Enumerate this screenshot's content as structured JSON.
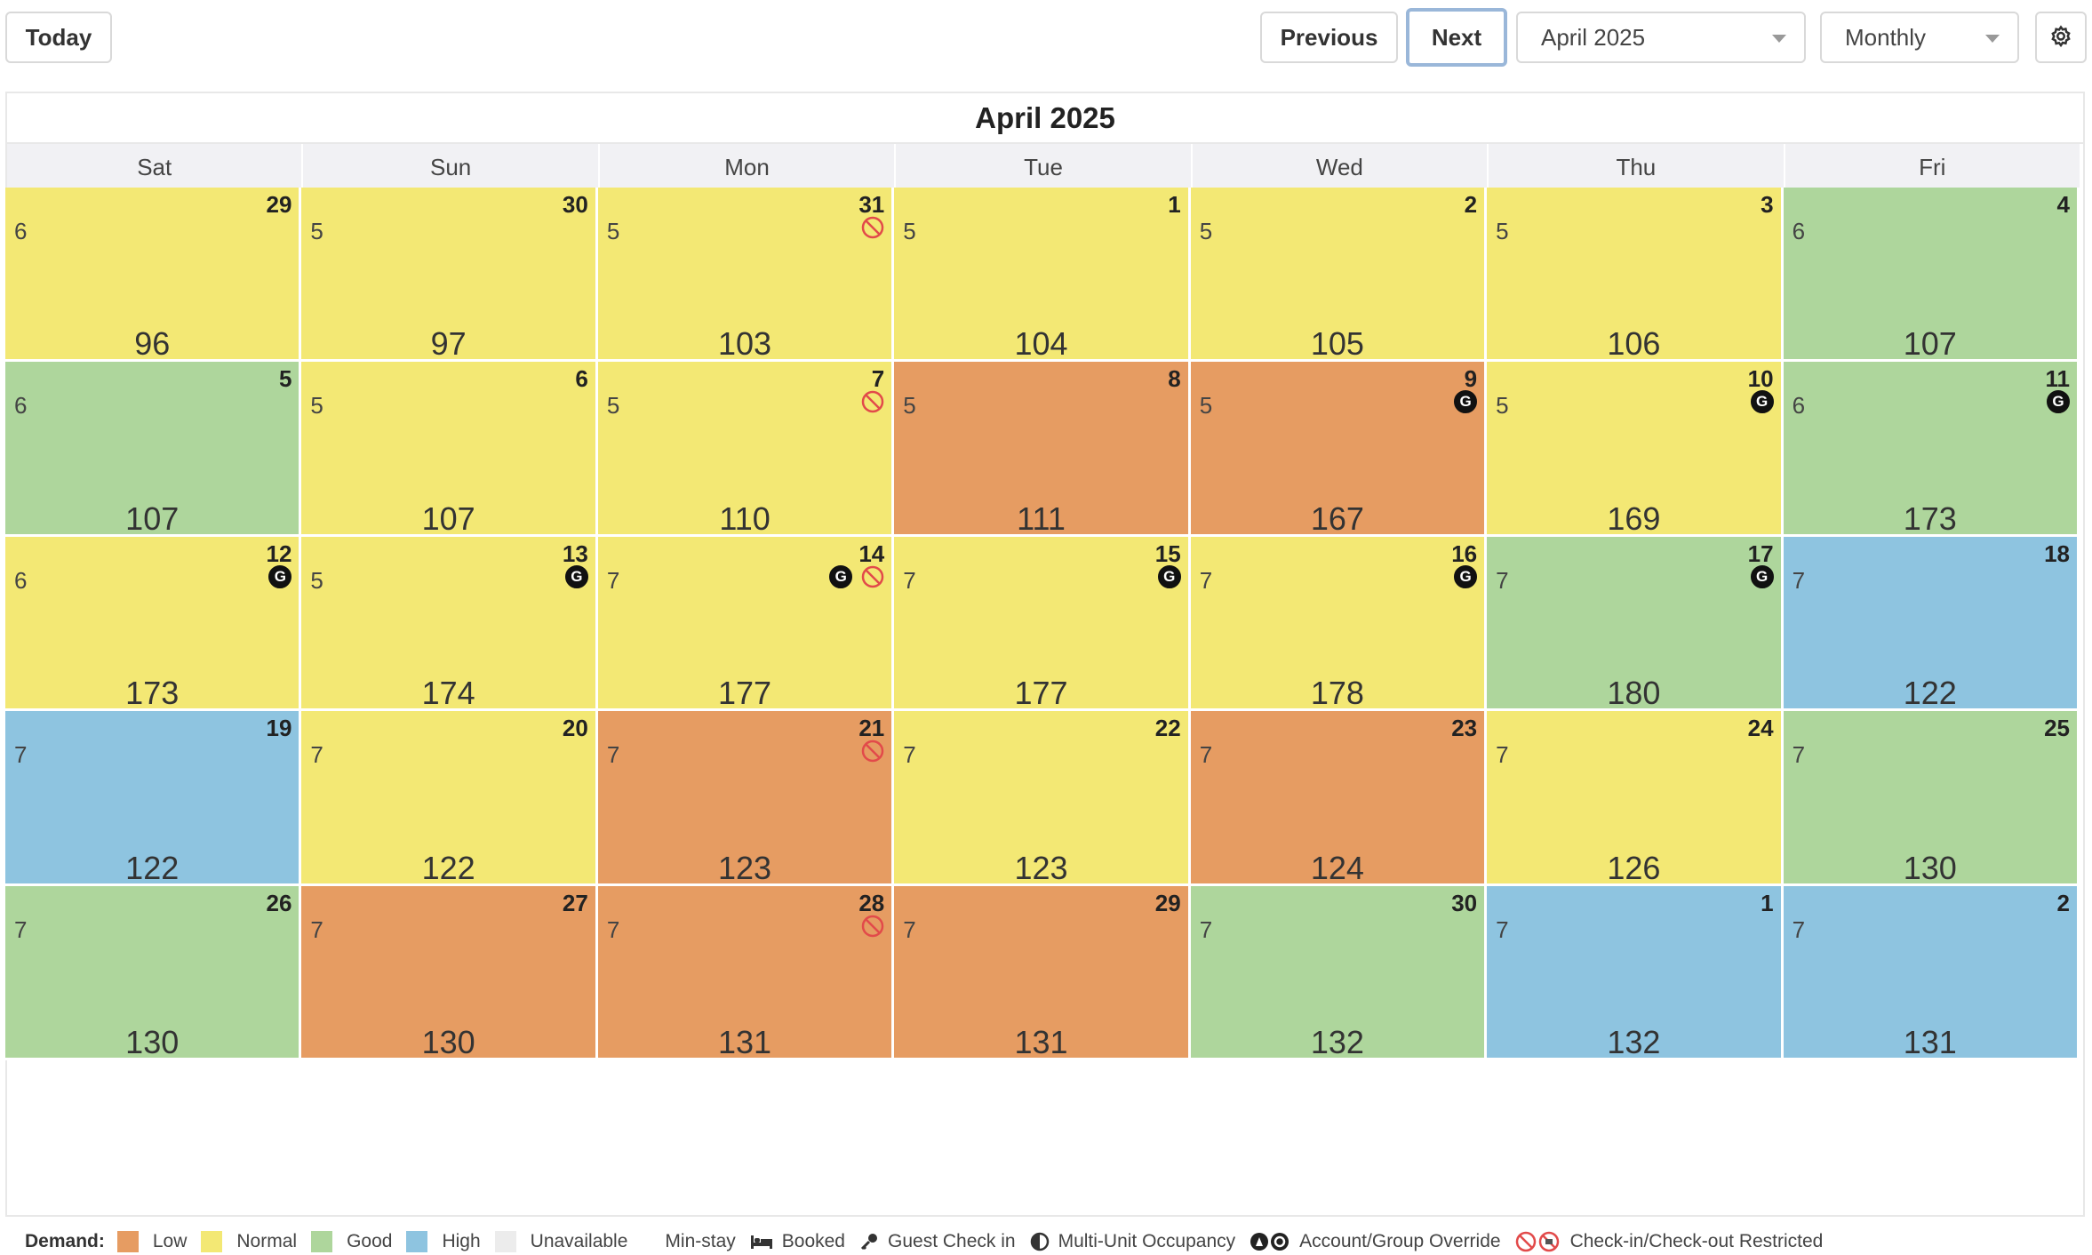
{
  "toolbar": {
    "today_label": "Today",
    "previous_label": "Previous",
    "next_label": "Next",
    "month_select": "April 2025",
    "view_select": "Monthly"
  },
  "calendar": {
    "title": "April 2025",
    "weekdays": [
      "Sat",
      "Sun",
      "Mon",
      "Tue",
      "Wed",
      "Thu",
      "Fri"
    ],
    "demand_colors": {
      "low": "#e69c62",
      "normal": "#f3e874",
      "good": "#aed69c",
      "high": "#8ec4e0",
      "unavailable": "#ececec"
    },
    "weeks": [
      [
        {
          "day": "29",
          "minstay": "6",
          "price": "96",
          "demand": "normal"
        },
        {
          "day": "30",
          "minstay": "5",
          "price": "97",
          "demand": "normal"
        },
        {
          "day": "31",
          "minstay": "5",
          "price": "103",
          "demand": "normal",
          "restricted": true
        },
        {
          "day": "1",
          "minstay": "5",
          "price": "104",
          "demand": "normal"
        },
        {
          "day": "2",
          "minstay": "5",
          "price": "105",
          "demand": "normal"
        },
        {
          "day": "3",
          "minstay": "5",
          "price": "106",
          "demand": "normal"
        },
        {
          "day": "4",
          "minstay": "6",
          "price": "107",
          "demand": "good"
        }
      ],
      [
        {
          "day": "5",
          "minstay": "6",
          "price": "107",
          "demand": "good"
        },
        {
          "day": "6",
          "minstay": "5",
          "price": "107",
          "demand": "normal"
        },
        {
          "day": "7",
          "minstay": "5",
          "price": "110",
          "demand": "normal",
          "restricted": true
        },
        {
          "day": "8",
          "minstay": "5",
          "price": "111",
          "demand": "low"
        },
        {
          "day": "9",
          "minstay": "5",
          "price": "167",
          "demand": "low",
          "group": true
        },
        {
          "day": "10",
          "minstay": "5",
          "price": "169",
          "demand": "normal",
          "group": true
        },
        {
          "day": "11",
          "minstay": "6",
          "price": "173",
          "demand": "good",
          "group": true
        }
      ],
      [
        {
          "day": "12",
          "minstay": "6",
          "price": "173",
          "demand": "normal",
          "group": true
        },
        {
          "day": "13",
          "minstay": "5",
          "price": "174",
          "demand": "normal",
          "group": true
        },
        {
          "day": "14",
          "minstay": "7",
          "price": "177",
          "demand": "normal",
          "group": true,
          "restricted": true
        },
        {
          "day": "15",
          "minstay": "7",
          "price": "177",
          "demand": "normal",
          "group": true
        },
        {
          "day": "16",
          "minstay": "7",
          "price": "178",
          "demand": "normal",
          "group": true
        },
        {
          "day": "17",
          "minstay": "7",
          "price": "180",
          "demand": "good",
          "group": true
        },
        {
          "day": "18",
          "minstay": "7",
          "price": "122",
          "demand": "high"
        }
      ],
      [
        {
          "day": "19",
          "minstay": "7",
          "price": "122",
          "demand": "high"
        },
        {
          "day": "20",
          "minstay": "7",
          "price": "122",
          "demand": "normal"
        },
        {
          "day": "21",
          "minstay": "7",
          "price": "123",
          "demand": "low",
          "restricted": true
        },
        {
          "day": "22",
          "minstay": "7",
          "price": "123",
          "demand": "normal"
        },
        {
          "day": "23",
          "minstay": "7",
          "price": "124",
          "demand": "low"
        },
        {
          "day": "24",
          "minstay": "7",
          "price": "126",
          "demand": "normal"
        },
        {
          "day": "25",
          "minstay": "7",
          "price": "130",
          "demand": "good"
        }
      ],
      [
        {
          "day": "26",
          "minstay": "7",
          "price": "130",
          "demand": "good"
        },
        {
          "day": "27",
          "minstay": "7",
          "price": "130",
          "demand": "low"
        },
        {
          "day": "28",
          "minstay": "7",
          "price": "131",
          "demand": "low",
          "restricted": true
        },
        {
          "day": "29",
          "minstay": "7",
          "price": "131",
          "demand": "low"
        },
        {
          "day": "30",
          "minstay": "7",
          "price": "132",
          "demand": "good"
        },
        {
          "day": "1",
          "minstay": "7",
          "price": "132",
          "demand": "high"
        },
        {
          "day": "2",
          "minstay": "7",
          "price": "131",
          "demand": "high"
        }
      ]
    ],
    "group_badge_letter": "G"
  },
  "legend": {
    "title": "Demand:",
    "low": "Low",
    "normal": "Normal",
    "good": "Good",
    "high": "High",
    "unavailable": "Unavailable",
    "min_stay": "Min-stay",
    "booked": "Booked",
    "guest_check_in": "Guest Check in",
    "multi_unit": "Multi-Unit Occupancy",
    "override": "Account/Group Override",
    "restricted": "Check-in/Check-out Restricted",
    "icons": {
      "min_stay": "moon-icon",
      "booked": "bed-icon",
      "guest_check_in": "key-icon",
      "multi_unit": "half-circle-icon",
      "override": "override-badge-icons",
      "restricted": "restricted-icons"
    }
  }
}
